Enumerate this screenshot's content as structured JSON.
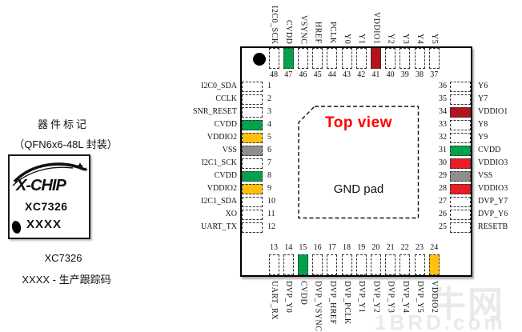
{
  "left_panel": {
    "heading": "器件标记",
    "package": "（QFN6x6-48L 封装）",
    "logo_text": "X-CHIP",
    "marking_line1": "XC7326",
    "marking_line2": "XXXX",
    "part_number": "XC7326",
    "tracking_note": "XXXX - 生产跟踪码"
  },
  "chip": {
    "top_view_label": "Top view",
    "gnd_pad_label": "GND pad"
  },
  "watermark": {
    "line1": "牛网",
    "line2": "1BRD.com"
  },
  "colors": {
    "cvdd": "#00A34B",
    "vddio1": "#B5121B",
    "vddio2": "#FFC010",
    "vddio3": "#EC1C24",
    "vss": "#8E8E8E",
    "default": "#FFFFFF",
    "top_view": "#FF0000"
  },
  "pins": {
    "top": [
      {
        "num": 48,
        "label": "I2C0_SCK",
        "type": "default"
      },
      {
        "num": 47,
        "label": "CVDD",
        "type": "cvdd"
      },
      {
        "num": 46,
        "label": "VSYNC",
        "type": "default"
      },
      {
        "num": 45,
        "label": "HREF",
        "type": "default"
      },
      {
        "num": 44,
        "label": "PCLK",
        "type": "default"
      },
      {
        "num": 43,
        "label": "Y0",
        "type": "default"
      },
      {
        "num": 42,
        "label": "Y1",
        "type": "default"
      },
      {
        "num": 41,
        "label": "VDDIO1",
        "type": "vddio1"
      },
      {
        "num": 40,
        "label": "Y2",
        "type": "default"
      },
      {
        "num": 39,
        "label": "Y3",
        "type": "default"
      },
      {
        "num": 38,
        "label": "Y4",
        "type": "default"
      },
      {
        "num": 37,
        "label": "Y5",
        "type": "default"
      }
    ],
    "left": [
      {
        "num": 1,
        "label": "I2C0_SDA",
        "type": "default"
      },
      {
        "num": 2,
        "label": "CCLK",
        "type": "default"
      },
      {
        "num": 3,
        "label": "SNR_RESET",
        "type": "default"
      },
      {
        "num": 4,
        "label": "CVDD",
        "type": "cvdd"
      },
      {
        "num": 5,
        "label": "VDDIO2",
        "type": "vddio2"
      },
      {
        "num": 6,
        "label": "VSS",
        "type": "vss"
      },
      {
        "num": 7,
        "label": "I2C1_SCK",
        "type": "default"
      },
      {
        "num": 8,
        "label": "CVDD",
        "type": "cvdd"
      },
      {
        "num": 9,
        "label": "VDDIO2",
        "type": "vddio2"
      },
      {
        "num": 10,
        "label": "I2C1_SDA",
        "type": "default"
      },
      {
        "num": 11,
        "label": "XO",
        "type": "default"
      },
      {
        "num": 12,
        "label": "UART_TX",
        "type": "default"
      }
    ],
    "right": [
      {
        "num": 36,
        "label": "Y6",
        "type": "default"
      },
      {
        "num": 35,
        "label": "Y7",
        "type": "default"
      },
      {
        "num": 34,
        "label": "VDDIO1",
        "type": "vddio1"
      },
      {
        "num": 33,
        "label": "Y8",
        "type": "default"
      },
      {
        "num": 32,
        "label": "Y9",
        "type": "default"
      },
      {
        "num": 31,
        "label": "CVDD",
        "type": "cvdd"
      },
      {
        "num": 30,
        "label": "VDDIO3",
        "type": "vddio3"
      },
      {
        "num": 29,
        "label": "VSS",
        "type": "vss"
      },
      {
        "num": 28,
        "label": "VDDIO3",
        "type": "vddio3"
      },
      {
        "num": 27,
        "label": "DVP_Y7",
        "type": "default"
      },
      {
        "num": 26,
        "label": "DVP_Y6",
        "type": "default"
      },
      {
        "num": 25,
        "label": "RESETB",
        "type": "default"
      }
    ],
    "bottom": [
      {
        "num": 13,
        "label": "UART_RX",
        "type": "default"
      },
      {
        "num": 14,
        "label": "DVP_Y0",
        "type": "default"
      },
      {
        "num": 15,
        "label": "CVDD",
        "type": "cvdd"
      },
      {
        "num": 16,
        "label": "DVP_VSYNC",
        "type": "default"
      },
      {
        "num": 17,
        "label": "DVP_HREF",
        "type": "default"
      },
      {
        "num": 18,
        "label": "DVP_PCLK",
        "type": "default"
      },
      {
        "num": 19,
        "label": "DVP_Y1",
        "type": "default"
      },
      {
        "num": 20,
        "label": "DVP_Y2",
        "type": "default"
      },
      {
        "num": 21,
        "label": "DVP_Y3",
        "type": "default"
      },
      {
        "num": 22,
        "label": "DVP_Y4",
        "type": "default"
      },
      {
        "num": 23,
        "label": "DVP_Y5",
        "type": "default"
      },
      {
        "num": 24,
        "label": "VDDIO2",
        "type": "vddio2"
      }
    ]
  }
}
